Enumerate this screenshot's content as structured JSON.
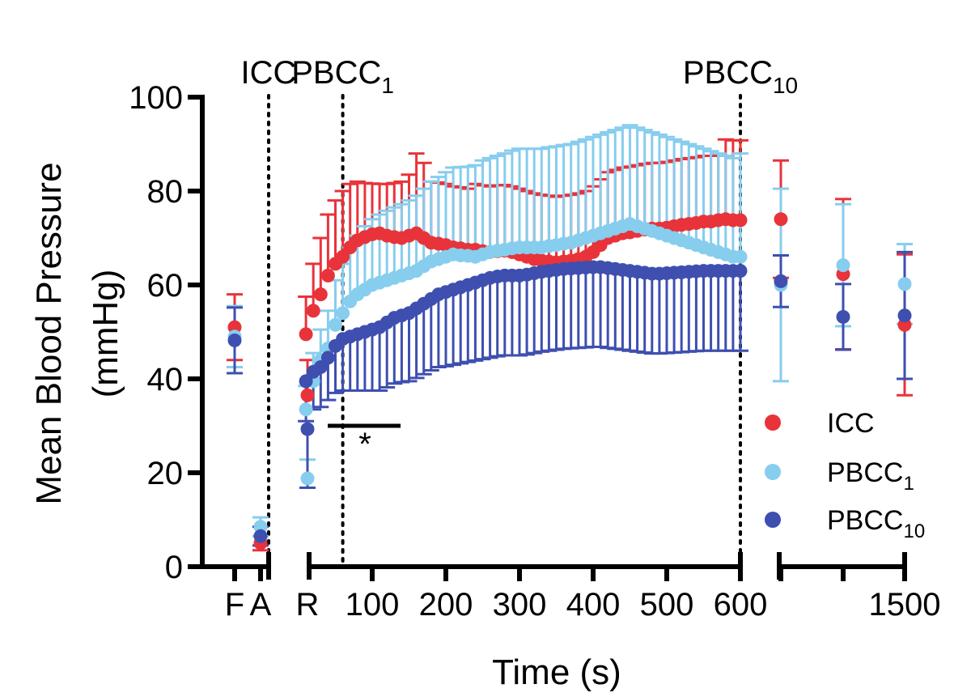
{
  "chart_data": {
    "type": "scatter",
    "ylabel_line1": "Mean Blood Pressure",
    "ylabel_line2": "(mmHg)",
    "xlabel": "Time (s)",
    "ylim": [
      0,
      100
    ],
    "y_ticks": [
      "0",
      "20",
      "40",
      "60",
      "80",
      "100"
    ],
    "x_ticks_baseline": [
      "F",
      "A"
    ],
    "x_ticks_main": [
      "R",
      "100",
      "200",
      "300",
      "400",
      "500",
      "600"
    ],
    "x_ticks_tail": [
      "1500"
    ],
    "markers": [
      {
        "name": "ICC",
        "base": "ICC",
        "sub": "",
        "position": "A"
      },
      {
        "name": "PBCC1",
        "base": "PBCC",
        "sub": "1",
        "position": 60
      },
      {
        "name": "PBCC10",
        "base": "PBCC",
        "sub": "10",
        "position": 600
      }
    ],
    "significance": {
      "label": "*",
      "from_s": 40,
      "to_s": 140
    },
    "legend": [
      {
        "base": "ICC",
        "sub": ""
      },
      {
        "base": "PBCC",
        "sub": "1"
      },
      {
        "base": "PBCC",
        "sub": "10"
      }
    ],
    "series": [
      {
        "name": "ICC",
        "color": "#e8333a",
        "baseline": [
          {
            "x": "F",
            "y": 51,
            "err": 7
          },
          {
            "x": "A",
            "y": 5,
            "err": 1.5
          }
        ],
        "main": {
          "x": [
            0,
            10,
            20,
            30,
            40,
            50,
            60,
            70,
            80,
            90,
            100,
            110,
            120,
            130,
            140,
            150,
            160,
            170,
            180,
            190,
            200,
            210,
            220,
            230,
            240,
            250,
            260,
            270,
            280,
            290,
            300,
            310,
            320,
            330,
            340,
            350,
            360,
            370,
            380,
            390,
            400,
            410,
            420,
            430,
            440,
            450,
            460,
            470,
            480,
            490,
            500,
            510,
            520,
            530,
            540,
            550,
            560,
            570,
            580,
            590,
            600
          ],
          "y": [
            36.5,
            49.5,
            54.5,
            58,
            62,
            64.5,
            66,
            68,
            69.5,
            70.2,
            70.8,
            71,
            70.5,
            70.2,
            70,
            70.5,
            71,
            70,
            69,
            68.8,
            68.5,
            68,
            67.8,
            67.5,
            67.5,
            67.2,
            67,
            67.2,
            67.3,
            67,
            66.5,
            66,
            65.5,
            65.2,
            65,
            64.8,
            65,
            65.2,
            65.5,
            66,
            67,
            68.5,
            70,
            70.5,
            71,
            71.2,
            71.5,
            71.8,
            72,
            72,
            72.2,
            72.5,
            72.8,
            73,
            73.2,
            73.5,
            73.5,
            73.8,
            74,
            73.8,
            73.8
          ],
          "err": [
            7.5,
            8,
            10,
            12,
            13,
            13.5,
            14,
            13.5,
            12.5,
            11.5,
            10.8,
            10.5,
            11,
            11.5,
            12,
            13,
            17,
            16,
            13,
            13,
            13,
            13,
            13,
            13,
            14,
            14,
            14,
            14,
            14,
            14,
            14,
            14,
            14,
            14,
            14,
            14,
            14,
            14,
            14,
            14,
            14,
            14,
            14,
            14,
            14,
            14,
            14,
            14,
            14,
            14,
            14,
            14,
            14,
            14,
            14,
            14,
            14,
            14,
            17,
            17,
            17
          ]
        },
        "tail": [
          {
            "x": 1,
            "y": 74,
            "err": 12.5
          },
          {
            "x": 2,
            "y": 62.3,
            "err": 16
          },
          {
            "x": 3,
            "y": 51.5,
            "err": 15
          }
        ]
      },
      {
        "name": "PBCC1",
        "color": "#87cdee",
        "baseline": [
          {
            "x": "F",
            "y": 49,
            "err": 6.5
          },
          {
            "x": "A",
            "y": 8.5,
            "err": 2
          }
        ],
        "main": {
          "x": [
            0,
            10,
            20,
            30,
            40,
            50,
            60,
            70,
            80,
            90,
            100,
            110,
            120,
            130,
            140,
            150,
            160,
            170,
            180,
            190,
            200,
            210,
            220,
            230,
            240,
            250,
            260,
            270,
            280,
            290,
            300,
            310,
            320,
            330,
            340,
            350,
            360,
            370,
            380,
            390,
            400,
            410,
            420,
            430,
            440,
            450,
            460,
            470,
            480,
            490,
            500,
            510,
            520,
            530,
            540,
            550,
            560,
            570,
            580,
            590,
            600
          ],
          "y": [
            18.8,
            33.5,
            39.5,
            44,
            46.5,
            51.5,
            54,
            56.5,
            58,
            59,
            60,
            60.5,
            61,
            61.5,
            62,
            62.5,
            63,
            64,
            65,
            65.5,
            66,
            66.5,
            66.3,
            66.2,
            66,
            66.5,
            67,
            67.3,
            67.5,
            67.8,
            68,
            68,
            68,
            68,
            68.3,
            68.5,
            68.8,
            69,
            69.5,
            70,
            70.5,
            71,
            71.5,
            72,
            72.5,
            73,
            72.5,
            72,
            71.5,
            71,
            70.5,
            70,
            69.5,
            69,
            68.5,
            68,
            67.5,
            67,
            66.5,
            66,
            66
          ],
          "err": [
            4,
            5,
            6,
            6.5,
            8,
            9.5,
            10.5,
            11.5,
            12.5,
            13.5,
            14,
            14.5,
            14.8,
            15,
            15.2,
            15.5,
            16,
            16.5,
            17,
            17.5,
            18,
            18.5,
            18.8,
            19,
            19.5,
            20,
            20,
            20.2,
            20.5,
            20.8,
            21,
            21,
            21,
            21,
            21,
            21,
            21,
            21,
            21,
            21,
            21,
            21,
            21,
            21,
            21,
            21,
            21,
            21,
            21,
            21,
            21,
            21,
            21,
            21,
            21,
            21,
            21,
            21,
            21,
            21,
            22
          ]
        },
        "tail": [
          {
            "x": 1,
            "y": 60,
            "err": 20.5
          },
          {
            "x": 2,
            "y": 64.2,
            "err": 13
          },
          {
            "x": 3,
            "y": 60.2,
            "err": 8.5
          }
        ]
      },
      {
        "name": "PBCC10",
        "color": "#3e4fb0",
        "baseline": [
          {
            "x": "F",
            "y": 48.2,
            "err": 7
          },
          {
            "x": "A",
            "y": 6.5,
            "err": 2
          }
        ],
        "main": {
          "x": [
            0,
            10,
            20,
            30,
            40,
            50,
            60,
            70,
            80,
            90,
            100,
            110,
            120,
            130,
            140,
            150,
            160,
            170,
            180,
            190,
            200,
            210,
            220,
            230,
            240,
            250,
            260,
            270,
            280,
            290,
            300,
            310,
            320,
            330,
            340,
            350,
            360,
            370,
            380,
            390,
            400,
            410,
            420,
            430,
            440,
            450,
            460,
            470,
            480,
            490,
            500,
            510,
            520,
            530,
            540,
            550,
            560,
            570,
            580,
            590,
            600
          ],
          "y": [
            29.3,
            39.5,
            41.5,
            42.5,
            44.5,
            47,
            48.5,
            49,
            49.5,
            50,
            50.5,
            51,
            52,
            53,
            53.5,
            54,
            55,
            56,
            57,
            58,
            58.5,
            59,
            59.5,
            60,
            60.5,
            61,
            61.5,
            61.8,
            62,
            62,
            62,
            62.2,
            62.5,
            62.8,
            63,
            63.2,
            63.4,
            63.5,
            63.6,
            63.7,
            63.8,
            63.8,
            63.6,
            63.4,
            63.2,
            63,
            62.8,
            62.6,
            62.4,
            62.4,
            62.5,
            62.6,
            62.7,
            62.8,
            62.9,
            63,
            63,
            63,
            63,
            63,
            63
          ],
          "err": [
            12.5,
            8.5,
            8,
            8.5,
            9,
            10,
            11,
            11.5,
            12,
            12.5,
            13,
            13.5,
            13.8,
            14,
            14.2,
            14.5,
            14.8,
            15,
            15.2,
            15.5,
            15.8,
            16,
            16.2,
            16.4,
            16.6,
            16.8,
            17,
            17,
            17,
            17,
            17,
            17,
            17,
            17,
            17,
            17,
            17,
            17,
            17,
            17,
            17,
            17,
            17,
            17,
            17,
            17,
            17,
            17,
            17,
            17,
            17,
            17,
            17,
            17,
            17,
            17,
            17,
            17,
            17,
            17,
            17
          ]
        },
        "tail": [
          {
            "x": 1,
            "y": 60.8,
            "err": 5.5
          },
          {
            "x": 2,
            "y": 53.2,
            "err": 7
          },
          {
            "x": 3,
            "y": 53.5,
            "err": 13.5
          }
        ]
      }
    ]
  }
}
